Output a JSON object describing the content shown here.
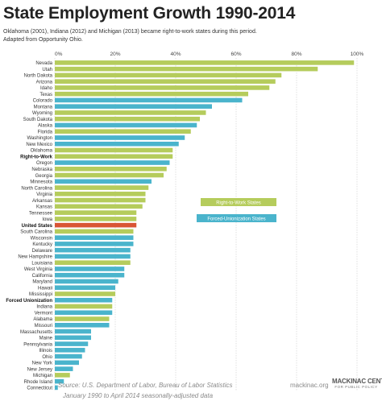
{
  "header": {
    "title": "State Employment Growth 1990-2014",
    "subtitle_line1": "Oklahoma (2001), Indiana (2012) and Michigan (2013) became right-to-work states during this period.",
    "subtitle_line2": "Adapted from Opportunity Ohio."
  },
  "footer": {
    "source_line1": "Source: U.S. Department of Labor, Bureau of Labor Statistics",
    "source_line2": "January 1990 to April 2014 seasonally-adjusted data",
    "website": "mackinac.org",
    "logo_main": "MACKINAC CENTER",
    "logo_sub": "FOR PUBLIC POLICY"
  },
  "colors": {
    "right_to_work": "#b5cc5c",
    "forced_unionization": "#4ab4cc",
    "united_states": "#d95535",
    "tick_text": "#444444"
  },
  "chart_data": {
    "type": "bar",
    "orientation": "horizontal",
    "title": "State Employment Growth 1990-2014",
    "xlim": [
      0,
      100
    ],
    "ticks": [
      "0%",
      "20%",
      "40%",
      "60%",
      "80%",
      "100%"
    ],
    "tick_values": [
      0,
      20,
      40,
      60,
      80,
      100
    ],
    "legend": {
      "placement": "right-middle",
      "items": [
        {
          "label": "Right-to-Work States",
          "group": "rtw"
        },
        {
          "label": "Forced-Unionization States",
          "group": "fu"
        }
      ]
    },
    "bars": [
      {
        "label": "Nevada",
        "value": 99,
        "group": "rtw"
      },
      {
        "label": "Utah",
        "value": 87,
        "group": "rtw"
      },
      {
        "label": "North Dakota",
        "value": 75,
        "group": "rtw"
      },
      {
        "label": "Arizona",
        "value": 73,
        "group": "rtw"
      },
      {
        "label": "Idaho",
        "value": 71,
        "group": "rtw"
      },
      {
        "label": "Texas",
        "value": 64,
        "group": "rtw"
      },
      {
        "label": "Colorado",
        "value": 62,
        "group": "fu"
      },
      {
        "label": "Montana",
        "value": 52,
        "group": "fu"
      },
      {
        "label": "Wyoming",
        "value": 50,
        "group": "rtw"
      },
      {
        "label": "South Dakota",
        "value": 48,
        "group": "rtw"
      },
      {
        "label": "Alaska",
        "value": 47,
        "group": "fu"
      },
      {
        "label": "Florida",
        "value": 45,
        "group": "rtw"
      },
      {
        "label": "Washington",
        "value": 43,
        "group": "fu"
      },
      {
        "label": "New Mexico",
        "value": 41,
        "group": "fu"
      },
      {
        "label": "Oklahoma",
        "value": 39,
        "group": "rtw"
      },
      {
        "label": "Right-to-Work",
        "value": 39,
        "group": "rtw",
        "bold": true
      },
      {
        "label": "Oregon",
        "value": 38,
        "group": "fu"
      },
      {
        "label": "Nebraska",
        "value": 37,
        "group": "rtw"
      },
      {
        "label": "Georgia",
        "value": 36,
        "group": "rtw"
      },
      {
        "label": "Minnesota",
        "value": 32,
        "group": "fu"
      },
      {
        "label": "North Carolina",
        "value": 31,
        "group": "rtw"
      },
      {
        "label": "Virginia",
        "value": 30,
        "group": "rtw"
      },
      {
        "label": "Arkansas",
        "value": 30,
        "group": "rtw"
      },
      {
        "label": "Kansas",
        "value": 29,
        "group": "rtw"
      },
      {
        "label": "Tennessee",
        "value": 27,
        "group": "rtw"
      },
      {
        "label": "Iowa",
        "value": 27,
        "group": "rtw"
      },
      {
        "label": "United States",
        "value": 27,
        "group": "us",
        "bold": true
      },
      {
        "label": "South Carolina",
        "value": 26,
        "group": "rtw"
      },
      {
        "label": "Wisconsin",
        "value": 26,
        "group": "fu"
      },
      {
        "label": "Kentucky",
        "value": 26,
        "group": "fu"
      },
      {
        "label": "Delaware",
        "value": 25,
        "group": "fu"
      },
      {
        "label": "New Hampshire",
        "value": 25,
        "group": "fu"
      },
      {
        "label": "Louisiana",
        "value": 25,
        "group": "rtw"
      },
      {
        "label": "West Virginia",
        "value": 23,
        "group": "fu"
      },
      {
        "label": "California",
        "value": 23,
        "group": "fu"
      },
      {
        "label": "Maryland",
        "value": 21,
        "group": "fu"
      },
      {
        "label": "Hawaii",
        "value": 20,
        "group": "fu"
      },
      {
        "label": "Mississippi",
        "value": 20,
        "group": "rtw"
      },
      {
        "label": "Forced Unionization",
        "value": 19,
        "group": "fu",
        "bold": true
      },
      {
        "label": "Indiana",
        "value": 19,
        "group": "rtw"
      },
      {
        "label": "Vermont",
        "value": 19,
        "group": "fu"
      },
      {
        "label": "Alabama",
        "value": 18,
        "group": "rtw"
      },
      {
        "label": "Missouri",
        "value": 18,
        "group": "fu"
      },
      {
        "label": "Massachusetts",
        "value": 12,
        "group": "fu"
      },
      {
        "label": "Maine",
        "value": 12,
        "group": "fu"
      },
      {
        "label": "Pennsylvania",
        "value": 11,
        "group": "fu"
      },
      {
        "label": "Illinois",
        "value": 10,
        "group": "fu"
      },
      {
        "label": "Ohio",
        "value": 9,
        "group": "fu"
      },
      {
        "label": "New York",
        "value": 8,
        "group": "fu"
      },
      {
        "label": "New Jersey",
        "value": 6,
        "group": "fu"
      },
      {
        "label": "Michigan",
        "value": 5,
        "group": "rtw"
      },
      {
        "label": "Rhode Island",
        "value": 3,
        "group": "fu"
      },
      {
        "label": "Connecticut",
        "value": 1,
        "group": "fu"
      }
    ]
  }
}
